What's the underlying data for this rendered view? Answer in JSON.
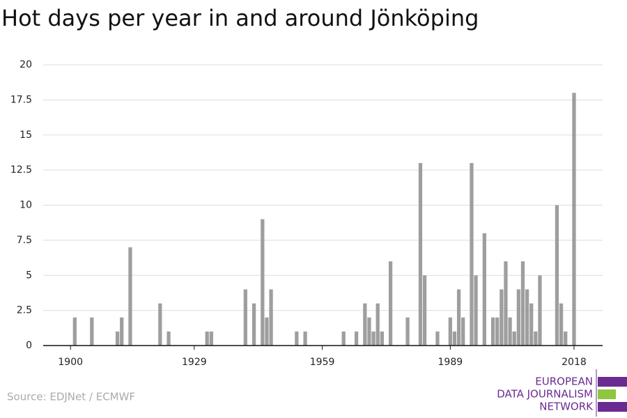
{
  "chart_data": {
    "type": "bar",
    "title": "Hot days per year in and around Jönköping",
    "source": "Source: EDJNet / ECMWF",
    "logo": [
      "EUROPEAN",
      "DATA JOURNALISM",
      "NETWORK"
    ],
    "x": [
      1901,
      1905,
      1911,
      1912,
      1914,
      1921,
      1923,
      1932,
      1933,
      1941,
      1943,
      1945,
      1946,
      1947,
      1953,
      1955,
      1964,
      1967,
      1969,
      1970,
      1971,
      1972,
      1973,
      1975,
      1979,
      1982,
      1983,
      1986,
      1989,
      1990,
      1991,
      1992,
      1994,
      1995,
      1997,
      1999,
      2000,
      2001,
      2002,
      2003,
      2004,
      2005,
      2006,
      2007,
      2008,
      2009,
      2010,
      2014,
      2015,
      2016,
      2018
    ],
    "values": [
      2,
      2,
      1,
      2,
      7,
      3,
      1,
      1,
      1,
      4,
      3,
      9,
      2,
      4,
      1,
      1,
      1,
      1,
      3,
      2,
      1,
      3,
      1,
      6,
      2,
      13,
      5,
      1,
      2,
      1,
      4,
      2,
      13,
      5,
      8,
      2,
      2,
      4,
      6,
      2,
      1,
      4,
      6,
      4,
      3,
      1,
      5,
      10,
      3,
      1,
      18
    ],
    "color": "#9e9e9e",
    "xlim": [
      1893.6,
      2024.7
    ],
    "xticks": [
      1900,
      1929,
      1959,
      1989,
      2018
    ],
    "ylim": [
      0,
      20
    ],
    "yticks": [
      0,
      2.5,
      5,
      7.5,
      10,
      12.5,
      15,
      17.5,
      20
    ],
    "grid": true
  }
}
